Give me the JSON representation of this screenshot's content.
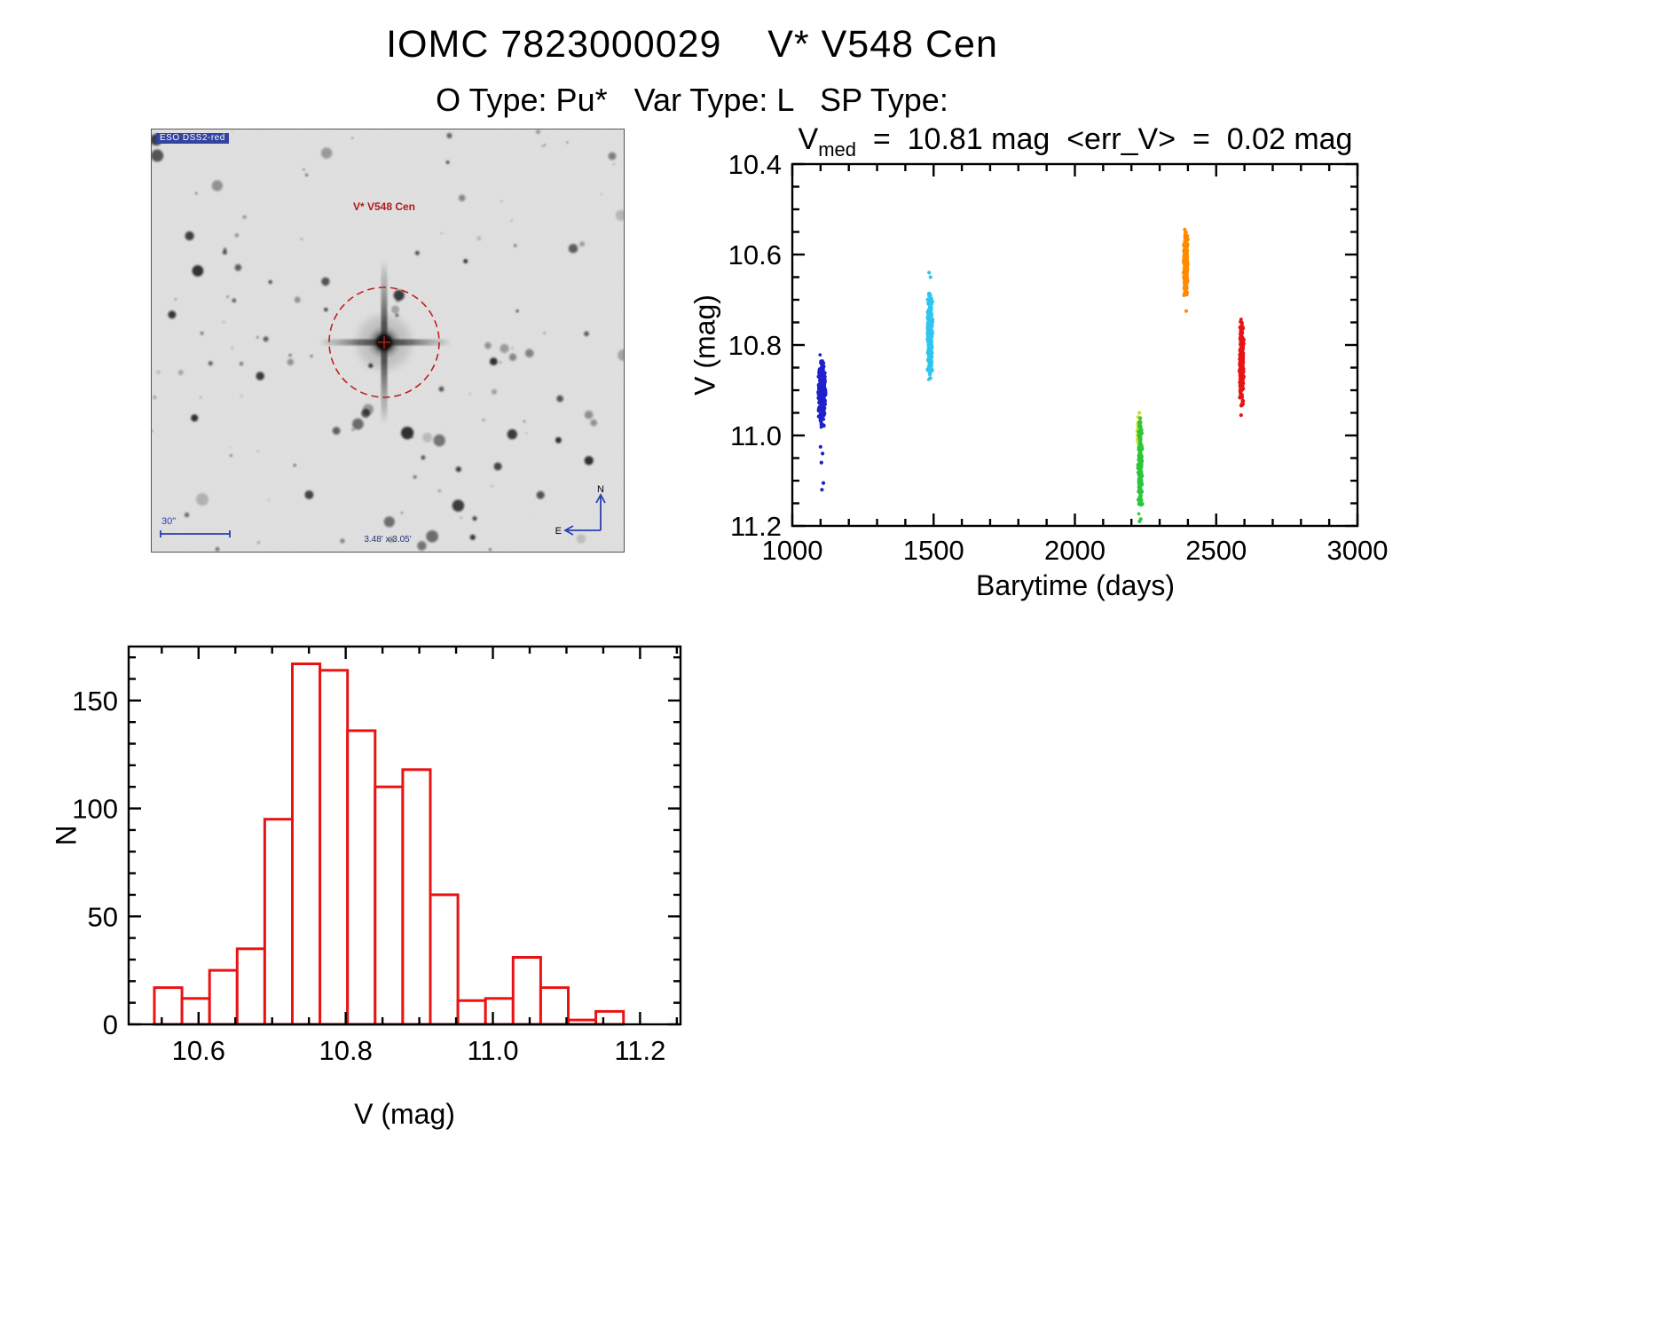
{
  "page": {
    "title": "IOMC 7823000029    V* V548 Cen",
    "subtitle": "O Type: Pu*   Var Type: L   SP Type:"
  },
  "finding_chart": {
    "survey_label": "ESO DSS2-red",
    "star_label": "V* V548 Cen",
    "scale_label": "30\"",
    "fov_label": "3.48' x 3.05'",
    "compass_north": "N",
    "compass_east": "E",
    "overlay_color": "#c02020",
    "annotation_color": "#2840b0"
  },
  "chart_data": [
    {
      "type": "scatter",
      "title": {
        "prefix": "V",
        "sub": "med",
        "rest": "  =  10.81 mag  <err_V>  =  0.02 mag"
      },
      "xlabel": "Barytime (days)",
      "ylabel": "V (mag)",
      "xlim": [
        1000,
        3000
      ],
      "ylim": [
        10.4,
        11.2
      ],
      "y_inverted": true,
      "grid": false,
      "xticks": [
        1000,
        1500,
        2000,
        2500,
        3000
      ],
      "yticks": [
        10.4,
        10.6,
        10.8,
        11.0,
        11.2
      ],
      "clusters": [
        {
          "name": "epoch-1",
          "color": "#2121cc",
          "x": 1105,
          "x_jitter": 13,
          "y_center": 10.905,
          "y_spread": 0.095,
          "n": 300,
          "outliers": [
            [
              1100,
              11.025
            ],
            [
              1107,
              11.04
            ],
            [
              1103,
              11.06
            ],
            [
              1110,
              11.105
            ],
            [
              1105,
              11.12
            ]
          ]
        },
        {
          "name": "epoch-2",
          "color": "#2fc6ee",
          "x": 1487,
          "x_jitter": 9,
          "y_center": 10.775,
          "y_spread": 0.125,
          "n": 330,
          "outliers": [
            [
              1484,
              10.64
            ],
            [
              1489,
              10.65
            ]
          ]
        },
        {
          "name": "epoch-3-upper",
          "color": "#cede1f",
          "x": 2228,
          "x_jitter": 6,
          "y_center": 10.99,
          "y_spread": 0.04,
          "n": 70,
          "outliers": [
            [
              2228,
              10.95
            ]
          ]
        },
        {
          "name": "epoch-3-lower",
          "color": "#2dc63a",
          "x": 2231,
          "x_jitter": 7,
          "y_center": 11.065,
          "y_spread": 0.115,
          "n": 170,
          "outliers": [
            [
              2229,
              11.19
            ],
            [
              2233,
              11.185
            ]
          ]
        },
        {
          "name": "epoch-4",
          "color": "#ff8a00",
          "x": 2392,
          "x_jitter": 7,
          "y_center": 10.62,
          "y_spread": 0.09,
          "n": 230,
          "outliers": [
            [
              2389,
              10.545
            ],
            [
              2394,
              10.725
            ]
          ]
        },
        {
          "name": "epoch-5",
          "color": "#e81414",
          "x": 2590,
          "x_jitter": 7,
          "y_center": 10.84,
          "y_spread": 0.115,
          "n": 280,
          "outliers": [
            [
              2588,
              10.955
            ]
          ]
        }
      ]
    },
    {
      "type": "histogram",
      "xlabel": "V (mag)",
      "ylabel": "N",
      "xlim": [
        10.505,
        11.255
      ],
      "ylim": [
        0,
        175
      ],
      "grid": false,
      "xticks": [
        10.6,
        10.8,
        11.0,
        11.2
      ],
      "yticks": [
        0,
        50,
        100,
        150
      ],
      "bar_color": "#e81414",
      "bin_start": 10.54,
      "bin_width": 0.0375,
      "counts": [
        17,
        12,
        25,
        35,
        95,
        167,
        164,
        136,
        110,
        118,
        60,
        11,
        12,
        31,
        17,
        2,
        6
      ]
    }
  ]
}
